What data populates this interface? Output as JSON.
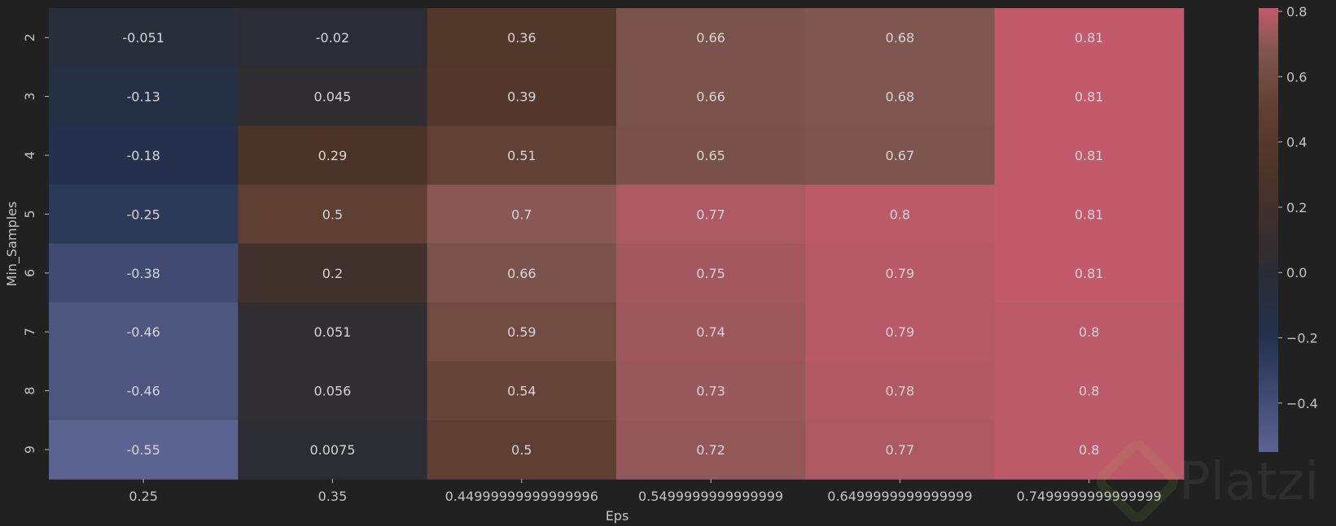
{
  "chart_data": {
    "type": "heatmap",
    "xlabel": "Eps",
    "ylabel": "Min_Samples",
    "x_categories": [
      "0.25",
      "0.35",
      "0.44999999999999996",
      "0.5499999999999999",
      "0.6499999999999999",
      "0.7499999999999999"
    ],
    "y_categories": [
      "2",
      "3",
      "4",
      "5",
      "6",
      "7",
      "8",
      "9"
    ],
    "values": [
      [
        -0.051,
        -0.02,
        0.36,
        0.66,
        0.68,
        0.81
      ],
      [
        -0.13,
        0.045,
        0.39,
        0.66,
        0.68,
        0.81
      ],
      [
        -0.18,
        0.29,
        0.51,
        0.65,
        0.67,
        0.81
      ],
      [
        -0.25,
        0.5,
        0.7,
        0.77,
        0.8,
        0.81
      ],
      [
        -0.38,
        0.2,
        0.66,
        0.75,
        0.79,
        0.81
      ],
      [
        -0.46,
        0.051,
        0.59,
        0.74,
        0.79,
        0.8
      ],
      [
        -0.46,
        0.056,
        0.54,
        0.73,
        0.78,
        0.8
      ],
      [
        -0.55,
        0.0075,
        0.5,
        0.72,
        0.77,
        0.8
      ]
    ],
    "annotations": [
      [
        "-0.051",
        "-0.02",
        "0.36",
        "0.66",
        "0.68",
        "0.81"
      ],
      [
        "-0.13",
        "0.045",
        "0.39",
        "0.66",
        "0.68",
        "0.81"
      ],
      [
        "-0.18",
        "0.29",
        "0.51",
        "0.65",
        "0.67",
        "0.81"
      ],
      [
        "-0.25",
        "0.5",
        "0.7",
        "0.77",
        "0.8",
        "0.81"
      ],
      [
        "-0.38",
        "0.2",
        "0.66",
        "0.75",
        "0.79",
        "0.81"
      ],
      [
        "-0.46",
        "0.051",
        "0.59",
        "0.74",
        "0.79",
        "0.8"
      ],
      [
        "-0.46",
        "0.056",
        "0.54",
        "0.73",
        "0.78",
        "0.8"
      ],
      [
        "-0.55",
        "0.0075",
        "0.5",
        "0.72",
        "0.77",
        "0.8"
      ]
    ],
    "colorbar": {
      "range": [
        -0.55,
        0.81
      ],
      "ticks": [
        0.8,
        0.6,
        0.4,
        0.2,
        0.0,
        -0.2,
        -0.4
      ],
      "tick_labels": [
        "0.8",
        "0.6",
        "0.4",
        "0.2",
        "0.0",
        "−0.2",
        "−0.4"
      ]
    },
    "colormap": [
      [
        -0.55,
        "#5c6391"
      ],
      [
        -0.2,
        "#24324f"
      ],
      [
        0.0,
        "#2b2c33"
      ],
      [
        0.3,
        "#4c3328"
      ],
      [
        0.5,
        "#5f3f33"
      ],
      [
        0.68,
        "#7f5650"
      ],
      [
        0.81,
        "#c25a6c"
      ]
    ]
  },
  "watermark": {
    "text": "Platzi"
  }
}
